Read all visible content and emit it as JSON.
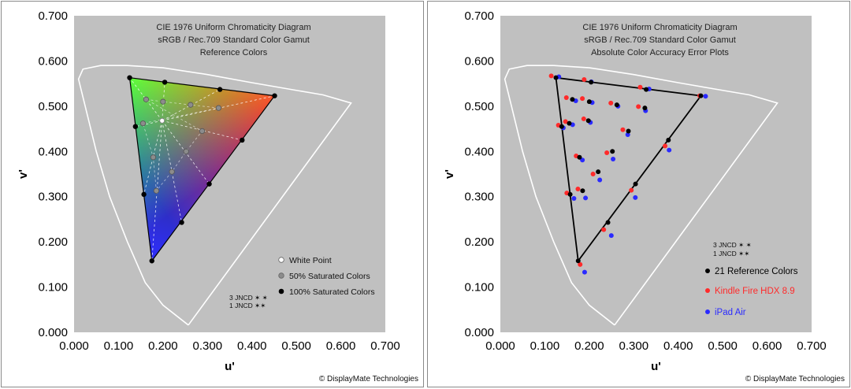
{
  "colors": {
    "plot_bg": "#c0c0c0",
    "locus": "#ffffff",
    "reference": "#000000",
    "kindle": "#ff2a2a",
    "ipad": "#2a2aff",
    "half_sat": "#8c8c8c",
    "white_point": "#ffffff"
  },
  "chart_data": [
    {
      "type": "scatter",
      "title_lines": [
        "CIE 1976 Uniform Chromaticity Diagram",
        "sRGB / Rec.709 Standard Color Gamut",
        "Reference Colors"
      ],
      "xlabel": "u'",
      "ylabel": "v'",
      "xlim": [
        0,
        0.7
      ],
      "ylim": [
        0,
        0.7
      ],
      "xticks": [
        "0.000",
        "0.100",
        "0.200",
        "0.300",
        "0.400",
        "0.500",
        "0.600",
        "0.700"
      ],
      "yticks": [
        "0.000",
        "0.100",
        "0.200",
        "0.300",
        "0.400",
        "0.500",
        "0.600",
        "0.700"
      ],
      "gamut": {
        "red": [
          0.451,
          0.523
        ],
        "green": [
          0.125,
          0.563
        ],
        "blue": [
          0.175,
          0.158
        ],
        "white": [
          0.198,
          0.468
        ]
      },
      "series": [
        {
          "name": "White Point",
          "points": [
            [
              0.198,
              0.468
            ]
          ]
        },
        {
          "name": "50% Saturated Colors",
          "points": [
            [
              0.162,
              0.515
            ],
            [
              0.2,
              0.51
            ],
            [
              0.262,
              0.503
            ],
            [
              0.325,
              0.496
            ],
            [
              0.155,
              0.462
            ],
            [
              0.178,
              0.387
            ],
            [
              0.185,
              0.313
            ],
            [
              0.22,
              0.355
            ],
            [
              0.252,
              0.4
            ],
            [
              0.288,
              0.445
            ]
          ]
        },
        {
          "name": "100% Saturated Colors",
          "points": [
            [
              0.125,
              0.563
            ],
            [
              0.204,
              0.553
            ],
            [
              0.328,
              0.537
            ],
            [
              0.451,
              0.523
            ],
            [
              0.138,
              0.455
            ],
            [
              0.157,
              0.305
            ],
            [
              0.175,
              0.158
            ],
            [
              0.242,
              0.243
            ],
            [
              0.304,
              0.328
            ],
            [
              0.378,
              0.425
            ]
          ]
        }
      ],
      "legend": [
        "White Point",
        "50% Saturated Colors",
        "100% Saturated Colors"
      ],
      "jncd": [
        "3 JNCD ✶ ✶",
        "1 JNCD ✶✶"
      ],
      "copyright": "© DisplayMate Technologies"
    },
    {
      "type": "scatter",
      "title_lines": [
        "CIE 1976 Uniform Chromaticity Diagram",
        "sRGB / Rec.709 Standard Color Gamut",
        "Absolute Color Accuracy Error Plots"
      ],
      "xlabel": "u'",
      "ylabel": "v'",
      "xlim": [
        0,
        0.7
      ],
      "ylim": [
        0,
        0.7
      ],
      "xticks": [
        "0.000",
        "0.100",
        "0.200",
        "0.300",
        "0.400",
        "0.500",
        "0.600",
        "0.700"
      ],
      "yticks": [
        "0.000",
        "0.100",
        "0.200",
        "0.300",
        "0.400",
        "0.500",
        "0.600",
        "0.700"
      ],
      "gamut": {
        "red": [
          0.451,
          0.523
        ],
        "green": [
          0.125,
          0.563
        ],
        "blue": [
          0.175,
          0.158
        ],
        "white": [
          0.198,
          0.468
        ]
      },
      "series": [
        {
          "name": "21 Reference Colors",
          "points": [
            [
              0.125,
              0.563
            ],
            [
              0.204,
              0.553
            ],
            [
              0.328,
              0.537
            ],
            [
              0.451,
              0.523
            ],
            [
              0.138,
              0.455
            ],
            [
              0.157,
              0.305
            ],
            [
              0.175,
              0.158
            ],
            [
              0.242,
              0.243
            ],
            [
              0.304,
              0.328
            ],
            [
              0.378,
              0.425
            ],
            [
              0.198,
              0.468
            ],
            [
              0.162,
              0.515
            ],
            [
              0.2,
              0.51
            ],
            [
              0.262,
              0.503
            ],
            [
              0.325,
              0.496
            ],
            [
              0.155,
              0.462
            ],
            [
              0.178,
              0.387
            ],
            [
              0.185,
              0.313
            ],
            [
              0.22,
              0.355
            ],
            [
              0.252,
              0.4
            ],
            [
              0.288,
              0.445
            ]
          ]
        },
        {
          "name": "Kindle Fire HDX 8.9",
          "points": [
            [
              0.118,
              0.567
            ],
            [
              0.192,
              0.559
            ],
            [
              0.318,
              0.542
            ],
            [
              0.452,
              0.523
            ],
            [
              0.134,
              0.458
            ],
            [
              0.153,
              0.308
            ],
            [
              0.183,
              0.15
            ],
            [
              0.236,
              0.227
            ],
            [
              0.298,
              0.314
            ],
            [
              0.374,
              0.412
            ],
            [
              0.191,
              0.472
            ],
            [
              0.152,
              0.519
            ],
            [
              0.188,
              0.517
            ],
            [
              0.252,
              0.507
            ],
            [
              0.314,
              0.499
            ],
            [
              0.15,
              0.466
            ],
            [
              0.174,
              0.39
            ],
            [
              0.178,
              0.317
            ],
            [
              0.212,
              0.35
            ],
            [
              0.243,
              0.397
            ],
            [
              0.279,
              0.448
            ]
          ]
        },
        {
          "name": "iPad Air",
          "points": [
            [
              0.128,
              0.565
            ],
            [
              0.201,
              0.554
            ],
            [
              0.331,
              0.538
            ],
            [
              0.458,
              0.522
            ],
            [
              0.138,
              0.452
            ],
            [
              0.162,
              0.296
            ],
            [
              0.186,
              0.133
            ],
            [
              0.246,
              0.214
            ],
            [
              0.3,
              0.298
            ],
            [
              0.376,
              0.403
            ],
            [
              0.199,
              0.464
            ],
            [
              0.166,
              0.512
            ],
            [
              0.203,
              0.508
            ],
            [
              0.261,
              0.5
            ],
            [
              0.323,
              0.49
            ],
            [
              0.159,
              0.459
            ],
            [
              0.181,
              0.381
            ],
            [
              0.188,
              0.297
            ],
            [
              0.22,
              0.337
            ],
            [
              0.25,
              0.383
            ],
            [
              0.283,
              0.437
            ]
          ]
        }
      ],
      "legend": [
        "21 Reference Colors",
        "Kindle Fire HDX 8.9",
        "iPad Air"
      ],
      "jncd": [
        "3 JNCD ✶ ✶",
        "1 JNCD ✶✶"
      ],
      "copyright": "© DisplayMate Technologies"
    }
  ]
}
